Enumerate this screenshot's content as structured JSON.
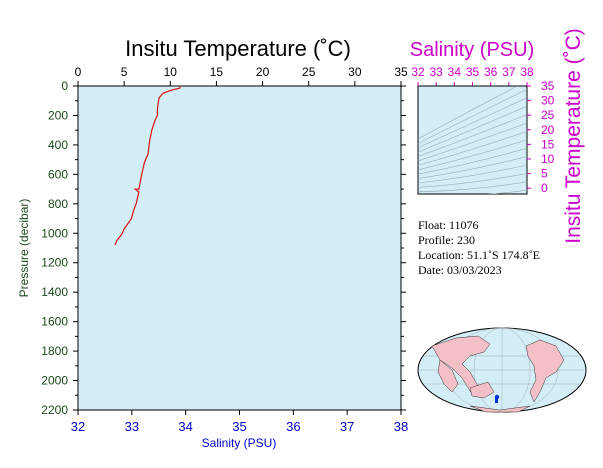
{
  "chart_data": [
    {
      "type": "line",
      "title": "Insitu Temperature (˚C)",
      "xlabel": "Salinity (PSU)",
      "ylabel": "Pressure (decibar)",
      "top_axis": {
        "label": "Insitu Temperature (˚C)",
        "range": [
          0,
          35
        ],
        "ticks": [
          0,
          5,
          10,
          15,
          20,
          25,
          30,
          35
        ],
        "tick_labels": [
          "0",
          "5",
          "10",
          "15",
          "20",
          "25",
          "30",
          "35"
        ]
      },
      "bottom_axis": {
        "label": "Salinity (PSU)",
        "range": [
          32,
          38
        ],
        "ticks": [
          32,
          33,
          34,
          35,
          36,
          37,
          38
        ],
        "tick_labels": [
          "32",
          "33",
          "34",
          "35",
          "36",
          "37",
          "38"
        ]
      },
      "y_axis": {
        "label": "Pressure (decibar)",
        "range": [
          0,
          2200
        ],
        "inverted": true,
        "ticks": [
          0,
          200,
          400,
          600,
          800,
          1000,
          1200,
          1400,
          1600,
          1800,
          2000,
          2200
        ],
        "tick_labels": [
          "0",
          "200",
          "400",
          "600",
          "800",
          "1000",
          "1200",
          "1400",
          "1600",
          "1800",
          "2000",
          "2200"
        ]
      },
      "series": [
        {
          "color": "#dd1111",
          "x_axis": "temperature",
          "points": [
            [
              11.1,
              5
            ],
            [
              11.0,
              15
            ],
            [
              10.0,
              30
            ],
            [
              9.2,
              50
            ],
            [
              8.8,
              80
            ],
            [
              8.7,
              110
            ],
            [
              8.6,
              160
            ],
            [
              8.6,
              200
            ],
            [
              8.3,
              240
            ],
            [
              8.0,
              300
            ],
            [
              7.8,
              360
            ],
            [
              7.7,
              400
            ],
            [
              7.6,
              460
            ],
            [
              7.2,
              520
            ],
            [
              6.9,
              600
            ],
            [
              6.6,
              700
            ],
            [
              6.2,
              700
            ],
            [
              6.6,
              720
            ],
            [
              6.3,
              800
            ],
            [
              6.0,
              850
            ],
            [
              5.8,
              900
            ],
            [
              5.0,
              970
            ],
            [
              4.8,
              1000
            ],
            [
              4.2,
              1050
            ],
            [
              4.0,
              1080
            ]
          ]
        }
      ],
      "colors": {
        "plot_background": "#d4eef8",
        "axis": "#000000",
        "y_tick_labels": "#1a4a1a",
        "top_tick_labels": "#000000",
        "bottom_tick_labels": "#0000cc"
      }
    },
    {
      "type": "scatter",
      "title": "Salinity (PSU)",
      "top_axis": {
        "label": "Salinity (PSU)",
        "range": [
          32,
          38
        ],
        "tick_labels": [
          "32",
          "33",
          "34",
          "35",
          "36",
          "37",
          "38"
        ]
      },
      "right_axis": {
        "label": "Insitu Temperature (˚C)",
        "range": [
          -2,
          35
        ],
        "tick_labels": [
          "35",
          "30",
          "25",
          "20",
          "15",
          "10",
          "5",
          "0"
        ]
      },
      "colors": {
        "labels": "#cc00cc",
        "background": "#d4eef8",
        "contours": "#9aaab0"
      }
    }
  ],
  "float_info": {
    "float": "Float:  11076",
    "profile": "Profile:  230",
    "location": "Location:  51.1˚S  174.8˚E",
    "date": "Date:  03/03/2023"
  },
  "map": {
    "marker_label": "float-position",
    "marker_color": "#0033dd"
  }
}
